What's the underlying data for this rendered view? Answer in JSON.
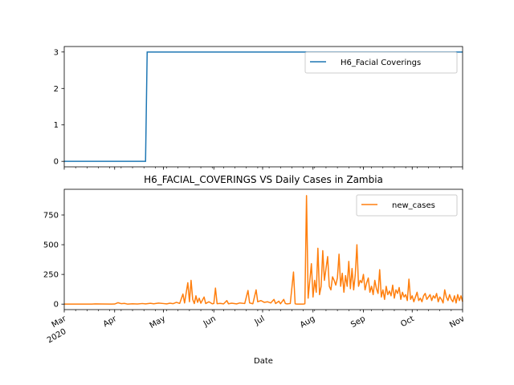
{
  "chart_data": [
    {
      "type": "line",
      "title": "",
      "xlabel": "",
      "ylabel": "",
      "ylim": [
        -0.15,
        3.15
      ],
      "yticks": [
        0,
        1,
        2,
        3
      ],
      "grid": false,
      "legend_position": "top-right",
      "series": [
        {
          "name": "H6_Facial Coverings",
          "color": "#1f77b4",
          "x": [
            "2020-03-01",
            "2020-04-20",
            "2020-04-21",
            "2020-11-01"
          ],
          "values": [
            0,
            0,
            3,
            3
          ]
        }
      ]
    },
    {
      "type": "line",
      "title": "H6_FACIAL_COVERINGS VS Daily Cases in Zambia",
      "xlabel": "Date",
      "ylabel": "",
      "ylim": [
        -46,
        966
      ],
      "yticks": [
        0,
        250,
        500,
        750
      ],
      "grid": false,
      "legend_position": "top-right",
      "xticks": [
        {
          "date": "2020-03-01",
          "label": "Mar",
          "sublabel": "2020"
        },
        {
          "date": "2020-04-01",
          "label": "Apr",
          "sublabel": ""
        },
        {
          "date": "2020-05-01",
          "label": "May",
          "sublabel": ""
        },
        {
          "date": "2020-06-01",
          "label": "Jun",
          "sublabel": ""
        },
        {
          "date": "2020-07-01",
          "label": "Jul",
          "sublabel": ""
        },
        {
          "date": "2020-08-01",
          "label": "Aug",
          "sublabel": ""
        },
        {
          "date": "2020-09-01",
          "label": "Sep",
          "sublabel": ""
        },
        {
          "date": "2020-10-01",
          "label": "Oct",
          "sublabel": ""
        },
        {
          "date": "2020-11-01",
          "label": "Nov",
          "sublabel": ""
        }
      ],
      "xlim": [
        "2020-03-01",
        "2020-11-01"
      ],
      "series": [
        {
          "name": "new_cases",
          "color": "#ff7f0e",
          "points": [
            [
              "2020-03-01",
              0
            ],
            [
              "2020-03-18",
              0
            ],
            [
              "2020-03-20",
              2
            ],
            [
              "2020-03-24",
              1
            ],
            [
              "2020-03-30",
              0
            ],
            [
              "2020-04-01",
              1
            ],
            [
              "2020-04-03",
              12
            ],
            [
              "2020-04-05",
              4
            ],
            [
              "2020-04-07",
              6
            ],
            [
              "2020-04-09",
              0
            ],
            [
              "2020-04-12",
              3
            ],
            [
              "2020-04-15",
              1
            ],
            [
              "2020-04-18",
              5
            ],
            [
              "2020-04-20",
              2
            ],
            [
              "2020-04-23",
              7
            ],
            [
              "2020-04-25",
              3
            ],
            [
              "2020-04-28",
              9
            ],
            [
              "2020-05-01",
              5
            ],
            [
              "2020-05-03",
              2
            ],
            [
              "2020-05-05",
              8
            ],
            [
              "2020-05-07",
              4
            ],
            [
              "2020-05-09",
              15
            ],
            [
              "2020-05-11",
              6
            ],
            [
              "2020-05-13",
              85
            ],
            [
              "2020-05-14",
              10
            ],
            [
              "2020-05-16",
              180
            ],
            [
              "2020-05-17",
              20
            ],
            [
              "2020-05-18",
              200
            ],
            [
              "2020-05-19",
              40
            ],
            [
              "2020-05-20",
              5
            ],
            [
              "2020-05-21",
              70
            ],
            [
              "2020-05-22",
              15
            ],
            [
              "2020-05-23",
              50
            ],
            [
              "2020-05-24",
              8
            ],
            [
              "2020-05-26",
              60
            ],
            [
              "2020-05-27",
              5
            ],
            [
              "2020-05-29",
              20
            ],
            [
              "2020-05-31",
              3
            ],
            [
              "2020-06-01",
              5
            ],
            [
              "2020-06-02",
              135
            ],
            [
              "2020-06-03",
              4
            ],
            [
              "2020-06-05",
              6
            ],
            [
              "2020-06-07",
              2
            ],
            [
              "2020-06-09",
              30
            ],
            [
              "2020-06-10",
              3
            ],
            [
              "2020-06-12",
              8
            ],
            [
              "2020-06-15",
              2
            ],
            [
              "2020-06-17",
              10
            ],
            [
              "2020-06-20",
              5
            ],
            [
              "2020-06-22",
              115
            ],
            [
              "2020-06-23",
              10
            ],
            [
              "2020-06-25",
              3
            ],
            [
              "2020-06-27",
              120
            ],
            [
              "2020-06-28",
              20
            ],
            [
              "2020-06-30",
              30
            ],
            [
              "2020-07-02",
              15
            ],
            [
              "2020-07-04",
              20
            ],
            [
              "2020-07-06",
              10
            ],
            [
              "2020-07-08",
              40
            ],
            [
              "2020-07-09",
              5
            ],
            [
              "2020-07-11",
              25
            ],
            [
              "2020-07-12",
              3
            ],
            [
              "2020-07-14",
              40
            ],
            [
              "2020-07-15",
              5
            ],
            [
              "2020-07-16",
              2
            ],
            [
              "2020-07-18",
              5
            ],
            [
              "2020-07-20",
              270
            ],
            [
              "2020-07-21",
              3
            ],
            [
              "2020-07-22",
              0
            ],
            [
              "2020-07-26",
              0
            ],
            [
              "2020-07-27",
              3
            ],
            [
              "2020-07-28",
              913
            ],
            [
              "2020-07-29",
              50
            ],
            [
              "2020-07-31",
              340
            ],
            [
              "2020-08-01",
              60
            ],
            [
              "2020-08-02",
              200
            ],
            [
              "2020-08-03",
              100
            ],
            [
              "2020-08-04",
              470
            ],
            [
              "2020-08-05",
              80
            ],
            [
              "2020-08-06",
              150
            ],
            [
              "2020-08-07",
              450
            ],
            [
              "2020-08-08",
              200
            ],
            [
              "2020-08-09",
              300
            ],
            [
              "2020-08-10",
              400
            ],
            [
              "2020-08-11",
              150
            ],
            [
              "2020-08-12",
              120
            ],
            [
              "2020-08-13",
              230
            ],
            [
              "2020-08-14",
              200
            ],
            [
              "2020-08-15",
              160
            ],
            [
              "2020-08-16",
              220
            ],
            [
              "2020-08-17",
              420
            ],
            [
              "2020-08-18",
              150
            ],
            [
              "2020-08-19",
              260
            ],
            [
              "2020-08-20",
              100
            ],
            [
              "2020-08-21",
              240
            ],
            [
              "2020-08-22",
              150
            ],
            [
              "2020-08-23",
              360
            ],
            [
              "2020-08-24",
              130
            ],
            [
              "2020-08-25",
              300
            ],
            [
              "2020-08-26",
              120
            ],
            [
              "2020-08-27",
              250
            ],
            [
              "2020-08-28",
              500
            ],
            [
              "2020-08-29",
              150
            ],
            [
              "2020-08-30",
              200
            ],
            [
              "2020-08-31",
              180
            ],
            [
              "2020-09-01",
              250
            ],
            [
              "2020-09-02",
              120
            ],
            [
              "2020-09-03",
              180
            ],
            [
              "2020-09-04",
              220
            ],
            [
              "2020-09-05",
              100
            ],
            [
              "2020-09-06",
              150
            ],
            [
              "2020-09-07",
              80
            ],
            [
              "2020-09-08",
              200
            ],
            [
              "2020-09-09",
              130
            ],
            [
              "2020-09-10",
              90
            ],
            [
              "2020-09-11",
              290
            ],
            [
              "2020-09-12",
              60
            ],
            [
              "2020-09-13",
              120
            ],
            [
              "2020-09-14",
              40
            ],
            [
              "2020-09-15",
              150
            ],
            [
              "2020-09-16",
              80
            ],
            [
              "2020-09-17",
              110
            ],
            [
              "2020-09-18",
              70
            ],
            [
              "2020-09-19",
              160
            ],
            [
              "2020-09-20",
              50
            ],
            [
              "2020-09-21",
              120
            ],
            [
              "2020-09-22",
              90
            ],
            [
              "2020-09-23",
              140
            ],
            [
              "2020-09-24",
              40
            ],
            [
              "2020-09-25",
              100
            ],
            [
              "2020-09-26",
              60
            ],
            [
              "2020-09-27",
              80
            ],
            [
              "2020-09-28",
              30
            ],
            [
              "2020-09-29",
              210
            ],
            [
              "2020-09-30",
              40
            ],
            [
              "2020-10-01",
              70
            ],
            [
              "2020-10-02",
              20
            ],
            [
              "2020-10-03",
              60
            ],
            [
              "2020-10-04",
              100
            ],
            [
              "2020-10-05",
              30
            ],
            [
              "2020-10-06",
              50
            ],
            [
              "2020-10-07",
              20
            ],
            [
              "2020-10-08",
              70
            ],
            [
              "2020-10-09",
              90
            ],
            [
              "2020-10-10",
              40
            ],
            [
              "2020-10-11",
              60
            ],
            [
              "2020-10-12",
              80
            ],
            [
              "2020-10-13",
              30
            ],
            [
              "2020-10-14",
              70
            ],
            [
              "2020-10-15",
              50
            ],
            [
              "2020-10-16",
              90
            ],
            [
              "2020-10-17",
              20
            ],
            [
              "2020-10-18",
              60
            ],
            [
              "2020-10-19",
              40
            ],
            [
              "2020-10-20",
              10
            ],
            [
              "2020-10-21",
              120
            ],
            [
              "2020-10-22",
              60
            ],
            [
              "2020-10-23",
              30
            ],
            [
              "2020-10-24",
              80
            ],
            [
              "2020-10-25",
              40
            ],
            [
              "2020-10-26",
              20
            ],
            [
              "2020-10-27",
              70
            ],
            [
              "2020-10-28",
              10
            ],
            [
              "2020-10-29",
              80
            ],
            [
              "2020-10-30",
              30
            ],
            [
              "2020-10-31",
              70
            ],
            [
              "2020-11-01",
              20
            ]
          ]
        }
      ]
    }
  ]
}
